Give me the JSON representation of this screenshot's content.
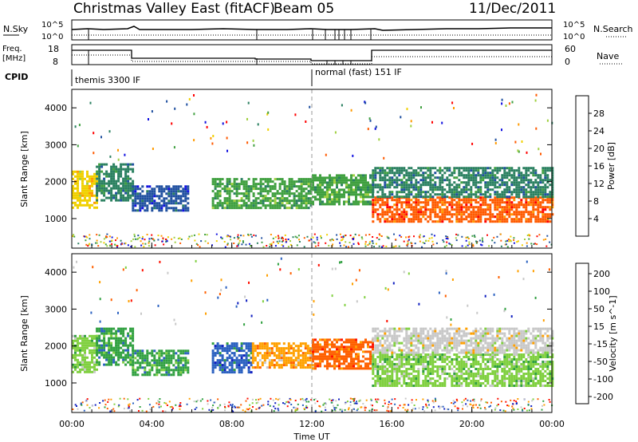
{
  "header": {
    "title": "Christmas Valley East (fitACF)",
    "beam": "Beam 05",
    "date": "11/Dec/2011"
  },
  "top_panels": {
    "nsky_label": "N.Sky",
    "nsearch_label": "N.Search",
    "nsky_ticks": [
      "10^5",
      "10^0"
    ],
    "nsearch_ticks": [
      "10^5",
      "10^0"
    ],
    "freq_label_1": "Freq.",
    "freq_label_2": "[MHz]",
    "freq_ticks": [
      "18",
      "8"
    ],
    "nave_label": "Nave",
    "nave_ticks": [
      "60",
      "0"
    ],
    "cpid_label": "CPID",
    "cpid_modes": [
      {
        "label": "themis 3300 IF",
        "start_hour": 0
      },
      {
        "label": "normal (fast) 151 IF",
        "start_hour": 12
      }
    ]
  },
  "chart_data": [
    {
      "type": "heatmap",
      "name": "Power",
      "ylabel": "Slant Range [km]",
      "xlabel": "Time UT",
      "xlim": [
        0,
        24
      ],
      "ylim": [
        200,
        4500
      ],
      "yticks": [
        1000,
        2000,
        3000,
        4000
      ],
      "xticks": [
        "00:00",
        "04:00",
        "08:00",
        "12:00",
        "16:00",
        "20:00",
        "00:00"
      ],
      "colorbar": {
        "label": "Power [dB]",
        "ticks": [
          "28",
          "24",
          "20",
          "16",
          "12",
          "8",
          "4"
        ],
        "colors": [
          "#ff0000",
          "#ff5a00",
          "#ff9a00",
          "#f0d000",
          "#a0d040",
          "#40a040",
          "#2a8060",
          "#2050a0",
          "#1010e0"
        ]
      },
      "regions": [
        {
          "t0": 0.0,
          "t1": 1.2,
          "r0": 1300,
          "r1": 2300,
          "value": 20
        },
        {
          "t0": 1.2,
          "t1": 3.0,
          "r0": 1500,
          "r1": 2500,
          "value": 10
        },
        {
          "t0": 3.0,
          "t1": 5.8,
          "r0": 1200,
          "r1": 1900,
          "value": 6
        },
        {
          "t0": 7.0,
          "t1": 12.0,
          "r0": 1300,
          "r1": 2100,
          "value": 12
        },
        {
          "t0": 12.0,
          "t1": 15.0,
          "r0": 1400,
          "r1": 2200,
          "value": 12
        },
        {
          "t0": 15.0,
          "t1": 24.0,
          "r0": 900,
          "r1": 1600,
          "value": 28
        },
        {
          "t0": 15.0,
          "t1": 24.0,
          "r0": 1600,
          "r1": 2400,
          "value": 10
        }
      ]
    },
    {
      "type": "heatmap",
      "name": "Velocity",
      "ylabel": "Slant Range [km]",
      "xlabel": "Time UT",
      "xlim": [
        0,
        24
      ],
      "ylim": [
        200,
        4500
      ],
      "yticks": [
        1000,
        2000,
        3000,
        4000
      ],
      "xticks": [
        "00:00",
        "04:00",
        "08:00",
        "12:00",
        "16:00",
        "20:00",
        "00:00"
      ],
      "colorbar": {
        "label": "Velocity [m s^-1]",
        "ticks": [
          "200",
          "100",
          "50",
          "15",
          "-15",
          "-50",
          "-100",
          "-200"
        ],
        "colors": [
          "#1020c0",
          "#2a60c0",
          "#30a040",
          "#80d040",
          "#c8c8c8",
          "#ffa000",
          "#ff6000",
          "#ff1000"
        ]
      },
      "regions": [
        {
          "t0": 0.0,
          "t1": 1.2,
          "r0": 1300,
          "r1": 2300,
          "value": 0
        },
        {
          "t0": 1.2,
          "t1": 3.0,
          "r0": 1500,
          "r1": 2500,
          "value": 60
        },
        {
          "t0": 3.0,
          "t1": 5.8,
          "r0": 1200,
          "r1": 1900,
          "value": 60
        },
        {
          "t0": 7.0,
          "t1": 9.0,
          "r0": 1300,
          "r1": 2100,
          "value": 80
        },
        {
          "t0": 9.0,
          "t1": 12.0,
          "r0": 1400,
          "r1": 2100,
          "value": -60
        },
        {
          "t0": 12.0,
          "t1": 15.0,
          "r0": 1400,
          "r1": 2200,
          "value": -80
        },
        {
          "t0": 15.0,
          "t1": 24.0,
          "r0": 900,
          "r1": 1800,
          "value": 0
        },
        {
          "t0": 15.0,
          "t1": 24.0,
          "r0": 1800,
          "r1": 2500,
          "value": -10
        }
      ]
    }
  ]
}
